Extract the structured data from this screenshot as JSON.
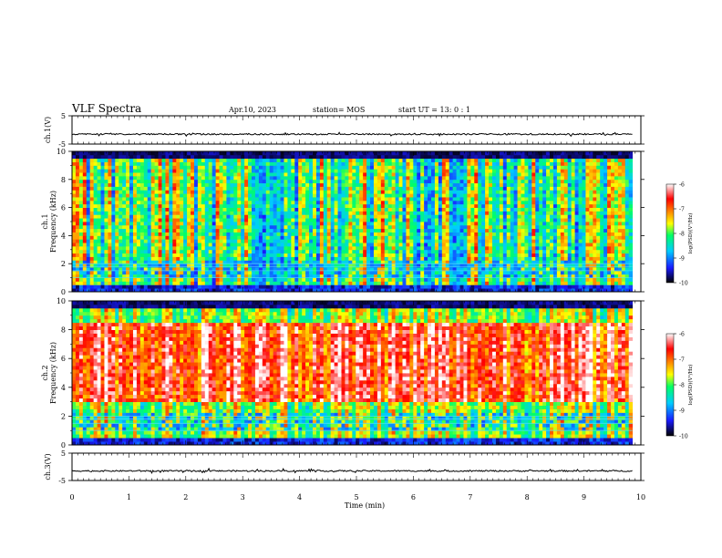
{
  "header": {
    "title": "VLF Spectra",
    "date": "Apr.10, 2023",
    "station": "station= MOS",
    "start": "start  UT  =   13: 0   : 1"
  },
  "chart_data": {
    "type": "heatmap",
    "x_axis": {
      "label": "Time  (min)",
      "range": [
        0,
        10
      ],
      "ticks": [
        "0",
        "1",
        "2",
        "3",
        "4",
        "5",
        "6",
        "7",
        "8",
        "9",
        "10"
      ]
    },
    "panels": [
      {
        "id": "ch1-waveform",
        "type": "line",
        "ylabel": "ch.1(V)",
        "ylim": [
          -5,
          5
        ],
        "yticks": [
          "5",
          "-5"
        ],
        "baseline": -1.5,
        "x_end": 9.85
      },
      {
        "id": "ch1-spectrogram",
        "type": "heatmap",
        "ylabel": "ch.1  Frequency  (kHz)",
        "ylim": [
          0,
          10
        ],
        "yticks": [
          "0",
          "2",
          "4",
          "6",
          "8",
          "10"
        ],
        "x_end": 9.85,
        "colorbar": {
          "label": "log(PSD)(V²/Hz)",
          "range": [
            -10,
            -6
          ],
          "ticks": [
            "-6",
            "-7",
            "-8",
            "-9",
            "-10"
          ]
        }
      },
      {
        "id": "ch2-spectrogram",
        "type": "heatmap",
        "ylabel": "ch.2  Frequency  (kHz)",
        "ylim": [
          0,
          10
        ],
        "yticks": [
          "0",
          "2",
          "4",
          "6",
          "8",
          "10"
        ],
        "x_end": 9.85,
        "colorbar": {
          "label": "log(PSD)(V²/Hz)",
          "range": [
            -10,
            -6
          ],
          "ticks": [
            "-6",
            "-7",
            "-8",
            "-9",
            "-10"
          ]
        }
      },
      {
        "id": "ch3-waveform",
        "type": "line",
        "ylabel": "ch.3(V)",
        "ylim": [
          -5,
          5
        ],
        "yticks": [
          "5",
          "-5"
        ],
        "baseline": -1.5,
        "x_end": 9.85
      }
    ],
    "colors": {
      "scale": [
        "#000000",
        "#1a1aff",
        "#00ccff",
        "#00ff66",
        "#ffff00",
        "#ff8800",
        "#ff0000",
        "#ffffff"
      ]
    }
  }
}
